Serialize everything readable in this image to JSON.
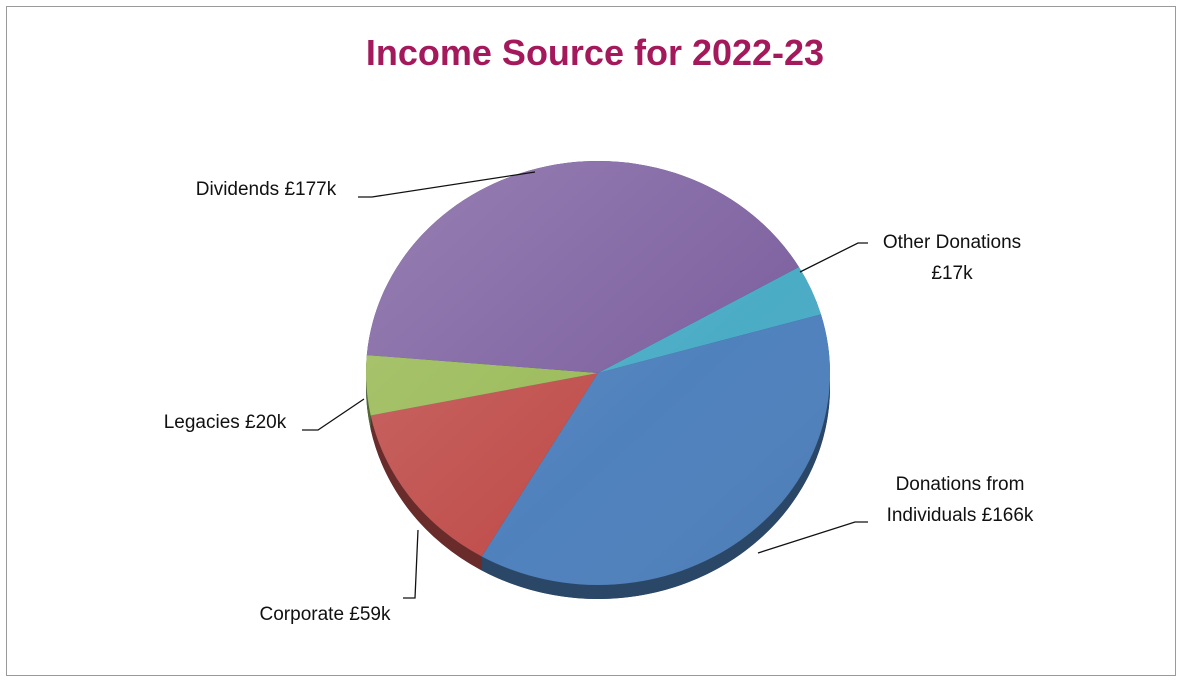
{
  "chart_data": {
    "type": "pie",
    "title": "Income Source for 2022-23",
    "slices": [
      {
        "label_lines": [
          "Other Donations",
          "£17k"
        ],
        "value": 17,
        "color": "#4bacc6"
      },
      {
        "label_lines": [
          "Donations from",
          "Individuals £166k"
        ],
        "value": 166,
        "color": "#4f81bd"
      },
      {
        "label_lines": [
          "Corporate  £59k"
        ],
        "value": 59,
        "color": "#c0504d"
      },
      {
        "label_lines": [
          "Legacies £20k"
        ],
        "value": 20,
        "color": "#9bbb59"
      },
      {
        "label_lines": [
          "Dividends £177k"
        ],
        "value": 177,
        "color": "#8064a2"
      }
    ],
    "legend": "none"
  }
}
